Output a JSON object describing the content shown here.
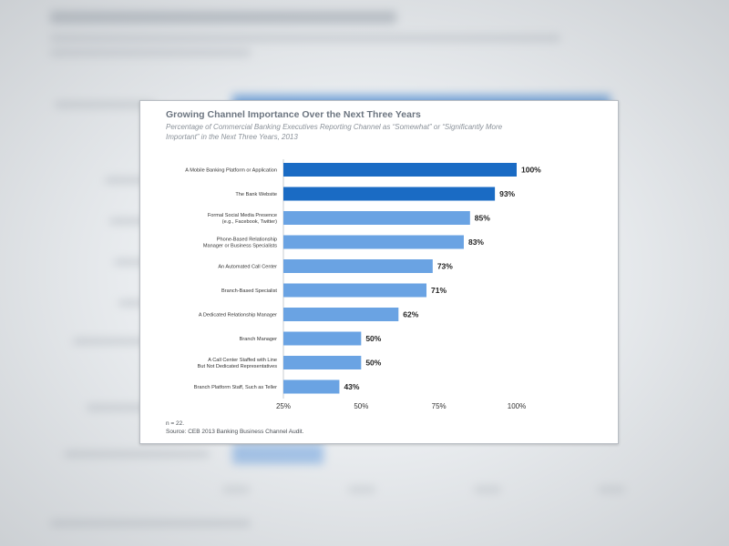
{
  "chart_data": {
    "type": "bar",
    "orientation": "horizontal",
    "title": "Growing Channel Importance Over the Next Three Years",
    "subtitle": "Percentage of Commercial Banking Executives Reporting Channel as “Somewhat” or “Significantly More Important” in the Next Three Years, 2013",
    "categories": [
      "A Mobile Banking Platform or Application",
      "The Bank Website",
      "Formal Social Media Presence (e.g., Facebook, Twitter)",
      "Phone-Based Relationship Manager or Business Specialists",
      "An Automated Call Center",
      "Branch-Based Specialist",
      "A Dedicated Relationship Manager",
      "Branch Manager",
      "A Call Center Staffed with Line But Not Dedicated Representatives",
      "Branch Platform Staff, Such as Teller"
    ],
    "category_lines": [
      [
        "A Mobile Banking Platform or Application"
      ],
      [
        "The Bank Website"
      ],
      [
        "Formal Social Media Presence",
        "(e.g., Facebook, Twitter)"
      ],
      [
        "Phone-Based Relationship",
        "Manager or Business Specialists"
      ],
      [
        "An Automated Call Center"
      ],
      [
        "Branch-Based Specialist"
      ],
      [
        "A Dedicated Relationship Manager"
      ],
      [
        "Branch Manager"
      ],
      [
        "A Call Center Staffed with Line",
        "But Not Dedicated Representatives"
      ],
      [
        "Branch Platform Staff, Such as Teller"
      ]
    ],
    "values": [
      100,
      93,
      85,
      83,
      73,
      71,
      62,
      50,
      50,
      43
    ],
    "value_labels": [
      "100%",
      "93%",
      "85%",
      "83%",
      "73%",
      "71%",
      "62%",
      "50%",
      "50%",
      "43%"
    ],
    "highlighted": [
      true,
      true,
      false,
      false,
      false,
      false,
      false,
      false,
      false,
      false
    ],
    "xlim": [
      25,
      100
    ],
    "xticks": [
      25,
      50,
      75,
      100
    ],
    "xtick_labels": [
      "25%",
      "50%",
      "75%",
      "100%"
    ],
    "grid": false,
    "legend": "none",
    "colors": {
      "highlight": "#1a6bc4",
      "normal": "#6aa3e3"
    }
  },
  "footnotes": {
    "n": "n = 22.",
    "source": "Source: CEB 2013 Banking Business Channel Audit."
  }
}
